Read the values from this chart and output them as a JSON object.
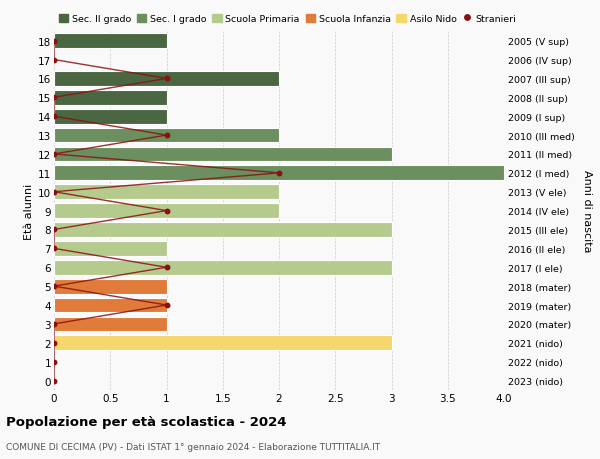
{
  "ages": [
    0,
    1,
    2,
    3,
    4,
    5,
    6,
    7,
    8,
    9,
    10,
    11,
    12,
    13,
    14,
    15,
    16,
    17,
    18
  ],
  "right_labels": [
    "2023 (nido)",
    "2022 (nido)",
    "2021 (nido)",
    "2020 (mater)",
    "2019 (mater)",
    "2018 (mater)",
    "2017 (I ele)",
    "2016 (II ele)",
    "2015 (III ele)",
    "2014 (IV ele)",
    "2013 (V ele)",
    "2012 (I med)",
    "2011 (II med)",
    "2010 (III med)",
    "2009 (I sup)",
    "2008 (II sup)",
    "2007 (III sup)",
    "2006 (IV sup)",
    "2005 (V sup)"
  ],
  "bar_values": [
    0,
    0,
    3,
    1,
    1,
    1,
    3,
    1,
    3,
    2,
    2,
    4,
    3,
    2,
    1,
    1,
    2,
    0,
    1
  ],
  "bar_colors": [
    "#f5d76e",
    "#f5d76e",
    "#f5d76e",
    "#e07b39",
    "#e07b39",
    "#e07b39",
    "#b5cb8e",
    "#b5cb8e",
    "#b5cb8e",
    "#b5cb8e",
    "#b5cb8e",
    "#6b8f5e",
    "#6b8f5e",
    "#6b8f5e",
    "#4a6741",
    "#4a6741",
    "#4a6741",
    "#4a6741",
    "#4a6741"
  ],
  "stranieri_values": [
    0,
    0,
    0,
    0,
    1,
    0,
    1,
    0,
    0,
    1,
    0,
    2,
    0,
    1,
    0,
    0,
    1,
    0,
    0
  ],
  "legend_labels": [
    "Sec. II grado",
    "Sec. I grado",
    "Scuola Primaria",
    "Scuola Infanzia",
    "Asilo Nido",
    "Stranieri"
  ],
  "legend_colors": [
    "#4a6741",
    "#6b8f5e",
    "#b5cb8e",
    "#e07b39",
    "#f5d76e",
    "#8b1010"
  ],
  "title": "Popolazione per età scolastica - 2024",
  "subtitle": "COMUNE DI CECIMA (PV) - Dati ISTAT 1° gennaio 2024 - Elaborazione TUTTITALIA.IT",
  "ylabel": "Età alunni",
  "ylabel_right": "Anni di nascita",
  "xlim": [
    0,
    4.0
  ],
  "xticks": [
    0,
    0.5,
    1.0,
    1.5,
    2.0,
    2.5,
    3.0,
    3.5,
    4.0
  ],
  "xtick_labels": [
    "0",
    "0.5",
    "1",
    "1.5",
    "2",
    "2.5",
    "3",
    "3.5",
    "4.0"
  ],
  "background_color": "#f9f9f9",
  "grid_color": "#cccccc",
  "stranieri_color": "#8b1010"
}
